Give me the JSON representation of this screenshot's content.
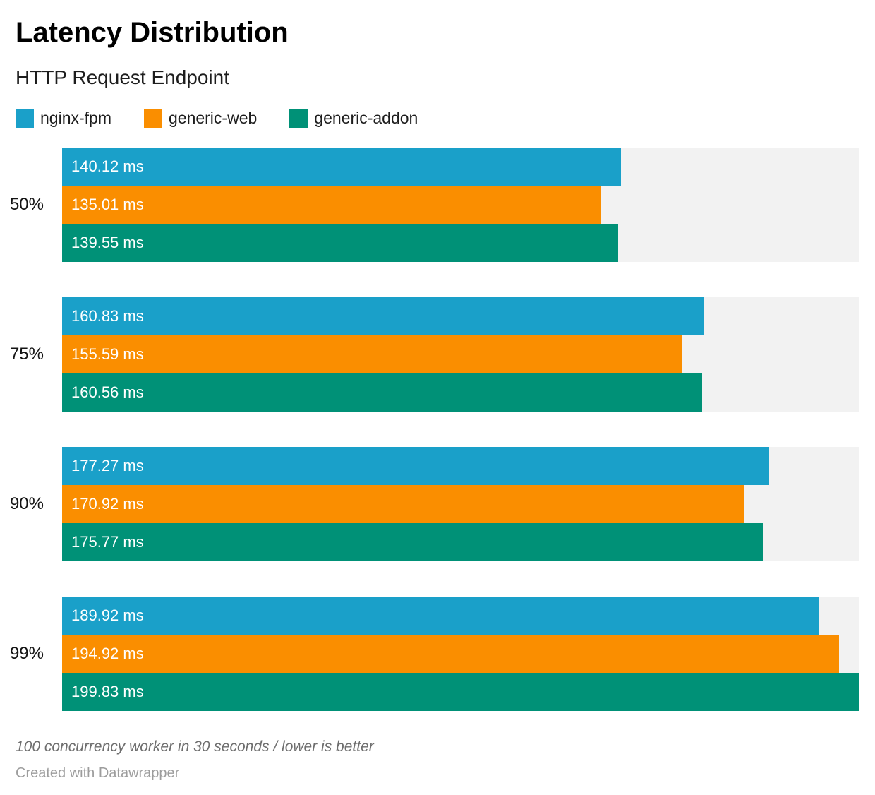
{
  "header": {
    "title": "Latency Distribution",
    "subtitle": "HTTP Request Endpoint"
  },
  "chart_data": {
    "type": "bar",
    "orientation": "horizontal",
    "title": "Latency Distribution",
    "subtitle": "HTTP Request Endpoint",
    "categories": [
      "50%",
      "75%",
      "90%",
      "99%"
    ],
    "series": [
      {
        "name": "nginx-fpm",
        "color": "#1aa0c9",
        "values": [
          140.12,
          160.83,
          177.27,
          189.92
        ]
      },
      {
        "name": "generic-web",
        "color": "#fa8e00",
        "values": [
          135.01,
          155.59,
          170.92,
          194.92
        ]
      },
      {
        "name": "generic-addon",
        "color": "#009177",
        "values": [
          139.55,
          160.56,
          175.77,
          199.83
        ]
      }
    ],
    "value_suffix": " ms",
    "value_decimals": 2,
    "xlim": [
      0,
      200
    ],
    "xlabel": "",
    "ylabel": "",
    "grid": false,
    "legend_position": "top",
    "track_color": "#f2f2f2",
    "label_color_on_bar": "#ffffff"
  },
  "footer": {
    "note": "100 concurrency worker in 30 seconds / lower is better",
    "attribution": "Created with Datawrapper"
  }
}
